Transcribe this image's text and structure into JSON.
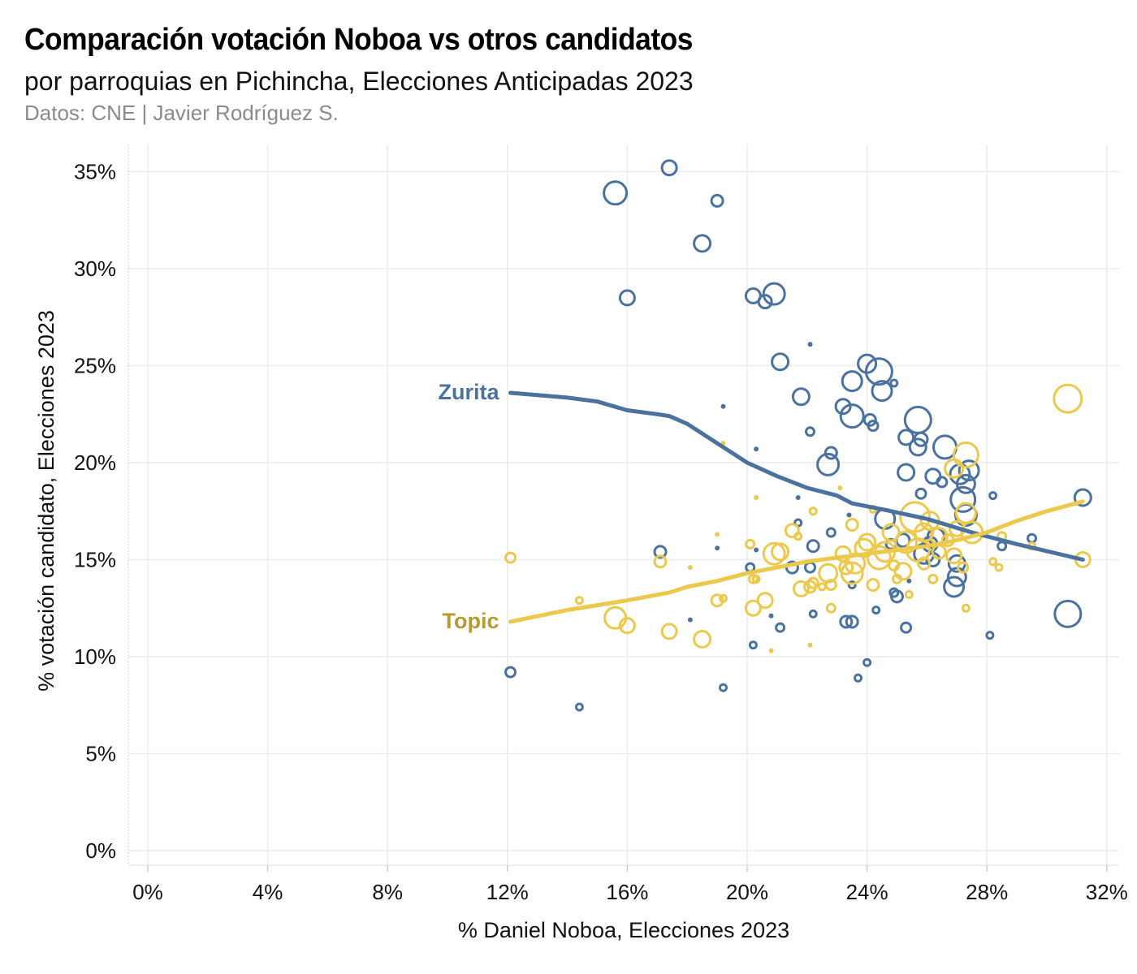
{
  "header": {
    "title": "Comparación votación Noboa vs otros candidatos",
    "subtitle": "por parroquias en Pichincha, Elecciones Anticipadas 2023",
    "source": "Datos: CNE | Javier Rodríguez S."
  },
  "chart_data": {
    "type": "scatter",
    "xlabel": "% Daniel Noboa, Elecciones 2023",
    "ylabel": "% votación candidato, Elecciones 2023",
    "xlim": [
      -0.6,
      32.5
    ],
    "ylim": [
      -0.8,
      37
    ],
    "x_ticks": [
      {
        "value": 0,
        "label": "0%"
      },
      {
        "value": 4,
        "label": "4%"
      },
      {
        "value": 8,
        "label": "8%"
      },
      {
        "value": 12,
        "label": "12%"
      },
      {
        "value": 16,
        "label": "16%"
      },
      {
        "value": 20,
        "label": "20%"
      },
      {
        "value": 24,
        "label": "24%"
      },
      {
        "value": 28,
        "label": "28%"
      },
      {
        "value": 32,
        "label": "32%"
      }
    ],
    "y_ticks": [
      {
        "value": 0,
        "label": "0%"
      },
      {
        "value": 5,
        "label": "5%"
      },
      {
        "value": 10,
        "label": "10%"
      },
      {
        "value": 15,
        "label": "15%"
      },
      {
        "value": 20,
        "label": "20%"
      },
      {
        "value": 25,
        "label": "25%"
      },
      {
        "value": 30,
        "label": "30%"
      },
      {
        "value": 35,
        "label": "35%"
      }
    ],
    "series": [
      {
        "name": "Zurita",
        "color": "#4a72a1",
        "label_color": "#4a72a1",
        "trend": [
          [
            12.1,
            23.6
          ],
          [
            14.0,
            23.35
          ],
          [
            15.0,
            23.15
          ],
          [
            16.0,
            22.7
          ],
          [
            17.0,
            22.5
          ],
          [
            17.4,
            22.4
          ],
          [
            18.0,
            22.0
          ],
          [
            19.0,
            21.0
          ],
          [
            20.0,
            20.0
          ],
          [
            21.0,
            19.3
          ],
          [
            22.0,
            18.7
          ],
          [
            23.0,
            18.3
          ],
          [
            23.5,
            17.9
          ],
          [
            24.5,
            17.6
          ],
          [
            26.0,
            17.1
          ],
          [
            27.5,
            16.4
          ],
          [
            29.0,
            15.8
          ],
          [
            31.2,
            15.0
          ]
        ],
        "points": [
          {
            "x": 17.4,
            "y": 35.2,
            "size": 9
          },
          {
            "x": 15.6,
            "y": 33.9,
            "size": 14
          },
          {
            "x": 19.0,
            "y": 33.5,
            "size": 7
          },
          {
            "x": 18.5,
            "y": 31.3,
            "size": 10
          },
          {
            "x": 16.0,
            "y": 28.5,
            "size": 9
          },
          {
            "x": 20.9,
            "y": 28.7,
            "size": 13
          },
          {
            "x": 20.2,
            "y": 28.6,
            "size": 9
          },
          {
            "x": 20.6,
            "y": 28.3,
            "size": 8
          },
          {
            "x": 22.1,
            "y": 26.1,
            "size": 3
          },
          {
            "x": 21.1,
            "y": 25.2,
            "size": 10
          },
          {
            "x": 24.0,
            "y": 25.1,
            "size": 11
          },
          {
            "x": 24.4,
            "y": 24.7,
            "size": 16
          },
          {
            "x": 23.5,
            "y": 24.2,
            "size": 12
          },
          {
            "x": 24.9,
            "y": 24.1,
            "size": 4
          },
          {
            "x": 24.5,
            "y": 23.7,
            "size": 12
          },
          {
            "x": 21.8,
            "y": 23.4,
            "size": 10
          },
          {
            "x": 23.2,
            "y": 22.9,
            "size": 9
          },
          {
            "x": 19.2,
            "y": 22.9,
            "size": 3
          },
          {
            "x": 23.5,
            "y": 22.4,
            "size": 14
          },
          {
            "x": 24.1,
            "y": 22.2,
            "size": 7
          },
          {
            "x": 24.2,
            "y": 21.9,
            "size": 6
          },
          {
            "x": 25.7,
            "y": 22.2,
            "size": 16
          },
          {
            "x": 22.1,
            "y": 21.6,
            "size": 5
          },
          {
            "x": 25.3,
            "y": 21.3,
            "size": 9
          },
          {
            "x": 25.8,
            "y": 21.2,
            "size": 8
          },
          {
            "x": 25.7,
            "y": 20.8,
            "size": 10
          },
          {
            "x": 26.6,
            "y": 20.8,
            "size": 14
          },
          {
            "x": 20.3,
            "y": 20.7,
            "size": 3
          },
          {
            "x": 22.8,
            "y": 20.5,
            "size": 7
          },
          {
            "x": 22.7,
            "y": 19.9,
            "size": 13
          },
          {
            "x": 25.3,
            "y": 19.5,
            "size": 10
          },
          {
            "x": 26.2,
            "y": 19.3,
            "size": 9
          },
          {
            "x": 27.1,
            "y": 19.4,
            "size": 12
          },
          {
            "x": 27.4,
            "y": 19.6,
            "size": 12
          },
          {
            "x": 26.5,
            "y": 19.0,
            "size": 6
          },
          {
            "x": 27.3,
            "y": 18.9,
            "size": 11
          },
          {
            "x": 25.8,
            "y": 18.4,
            "size": 6
          },
          {
            "x": 21.7,
            "y": 18.2,
            "size": 3
          },
          {
            "x": 28.2,
            "y": 18.3,
            "size": 4
          },
          {
            "x": 27.2,
            "y": 18.1,
            "size": 15
          },
          {
            "x": 31.2,
            "y": 18.2,
            "size": 10
          },
          {
            "x": 23.4,
            "y": 17.3,
            "size": 3
          },
          {
            "x": 27.3,
            "y": 17.3,
            "size": 13
          },
          {
            "x": 24.6,
            "y": 17.1,
            "size": 12
          },
          {
            "x": 21.7,
            "y": 16.9,
            "size": 4
          },
          {
            "x": 22.8,
            "y": 16.4,
            "size": 5
          },
          {
            "x": 26.3,
            "y": 16.2,
            "size": 10
          },
          {
            "x": 25.2,
            "y": 16.0,
            "size": 8
          },
          {
            "x": 24.8,
            "y": 15.8,
            "size": 6
          },
          {
            "x": 26.1,
            "y": 15.8,
            "size": 9
          },
          {
            "x": 22.2,
            "y": 15.7,
            "size": 7
          },
          {
            "x": 28.5,
            "y": 15.7,
            "size": 5
          },
          {
            "x": 29.5,
            "y": 16.1,
            "size": 5
          },
          {
            "x": 19.0,
            "y": 15.6,
            "size": 3
          },
          {
            "x": 17.1,
            "y": 15.4,
            "size": 7
          },
          {
            "x": 20.3,
            "y": 15.5,
            "size": 3
          },
          {
            "x": 25.9,
            "y": 15.3,
            "size": 12
          },
          {
            "x": 26.2,
            "y": 15.0,
            "size": 8
          },
          {
            "x": 27.0,
            "y": 14.8,
            "size": 10
          },
          {
            "x": 21.5,
            "y": 14.6,
            "size": 7
          },
          {
            "x": 20.1,
            "y": 14.6,
            "size": 5
          },
          {
            "x": 22.1,
            "y": 14.6,
            "size": 6
          },
          {
            "x": 27.0,
            "y": 14.1,
            "size": 11
          },
          {
            "x": 25.4,
            "y": 13.9,
            "size": 3
          },
          {
            "x": 23.5,
            "y": 13.7,
            "size": 4
          },
          {
            "x": 26.9,
            "y": 13.6,
            "size": 12
          },
          {
            "x": 24.9,
            "y": 13.3,
            "size": 5
          },
          {
            "x": 25.0,
            "y": 13.1,
            "size": 7
          },
          {
            "x": 24.3,
            "y": 12.4,
            "size": 4
          },
          {
            "x": 22.2,
            "y": 12.2,
            "size": 4
          },
          {
            "x": 20.8,
            "y": 12.1,
            "size": 3
          },
          {
            "x": 30.7,
            "y": 12.2,
            "size": 16
          },
          {
            "x": 18.1,
            "y": 11.9,
            "size": 3
          },
          {
            "x": 23.3,
            "y": 11.8,
            "size": 7
          },
          {
            "x": 23.5,
            "y": 11.8,
            "size": 7
          },
          {
            "x": 21.1,
            "y": 11.5,
            "size": 5
          },
          {
            "x": 25.3,
            "y": 11.5,
            "size": 6
          },
          {
            "x": 28.1,
            "y": 11.1,
            "size": 4
          },
          {
            "x": 20.2,
            "y": 10.6,
            "size": 4
          },
          {
            "x": 24.0,
            "y": 9.7,
            "size": 4
          },
          {
            "x": 12.1,
            "y": 9.2,
            "size": 6
          },
          {
            "x": 23.7,
            "y": 8.9,
            "size": 4
          },
          {
            "x": 19.2,
            "y": 8.4,
            "size": 4
          },
          {
            "x": 14.4,
            "y": 7.4,
            "size": 4
          }
        ]
      },
      {
        "name": "Topic",
        "color": "#ecc94b",
        "label_color": "#b99a2e",
        "trend": [
          [
            12.1,
            11.8
          ],
          [
            14.0,
            12.4
          ],
          [
            16.0,
            12.9
          ],
          [
            17.4,
            13.3
          ],
          [
            18.0,
            13.6
          ],
          [
            19.0,
            13.9
          ],
          [
            20.0,
            14.3
          ],
          [
            21.0,
            14.6
          ],
          [
            22.0,
            14.9
          ],
          [
            23.0,
            15.1
          ],
          [
            24.0,
            15.3
          ],
          [
            25.0,
            15.5
          ],
          [
            26.0,
            15.7
          ],
          [
            27.0,
            16.0
          ],
          [
            28.0,
            16.4
          ],
          [
            29.0,
            17.0
          ],
          [
            30.0,
            17.5
          ],
          [
            31.2,
            18.0
          ]
        ],
        "points": [
          {
            "x": 12.1,
            "y": 15.1,
            "size": 6
          },
          {
            "x": 14.4,
            "y": 12.9,
            "size": 4
          },
          {
            "x": 15.6,
            "y": 12.0,
            "size": 13
          },
          {
            "x": 16.0,
            "y": 11.6,
            "size": 9
          },
          {
            "x": 17.1,
            "y": 14.9,
            "size": 7
          },
          {
            "x": 17.4,
            "y": 11.3,
            "size": 9
          },
          {
            "x": 18.1,
            "y": 14.6,
            "size": 3
          },
          {
            "x": 18.5,
            "y": 10.9,
            "size": 10
          },
          {
            "x": 19.0,
            "y": 12.9,
            "size": 7
          },
          {
            "x": 19.0,
            "y": 16.3,
            "size": 3
          },
          {
            "x": 19.2,
            "y": 13.0,
            "size": 4
          },
          {
            "x": 19.2,
            "y": 21.0,
            "size": 3
          },
          {
            "x": 20.1,
            "y": 15.8,
            "size": 5
          },
          {
            "x": 20.2,
            "y": 14.0,
            "size": 5
          },
          {
            "x": 20.3,
            "y": 14.0,
            "size": 4
          },
          {
            "x": 20.2,
            "y": 12.5,
            "size": 9
          },
          {
            "x": 20.3,
            "y": 18.2,
            "size": 3
          },
          {
            "x": 20.6,
            "y": 12.9,
            "size": 9
          },
          {
            "x": 20.8,
            "y": 10.3,
            "size": 3
          },
          {
            "x": 20.9,
            "y": 15.3,
            "size": 13
          },
          {
            "x": 21.1,
            "y": 15.4,
            "size": 10
          },
          {
            "x": 21.5,
            "y": 16.5,
            "size": 8
          },
          {
            "x": 21.7,
            "y": 16.2,
            "size": 4
          },
          {
            "x": 21.8,
            "y": 13.5,
            "size": 9
          },
          {
            "x": 22.1,
            "y": 10.6,
            "size": 3
          },
          {
            "x": 22.1,
            "y": 13.6,
            "size": 7
          },
          {
            "x": 22.2,
            "y": 17.5,
            "size": 4
          },
          {
            "x": 22.2,
            "y": 13.8,
            "size": 6
          },
          {
            "x": 22.5,
            "y": 13.6,
            "size": 4
          },
          {
            "x": 22.7,
            "y": 14.3,
            "size": 11
          },
          {
            "x": 22.8,
            "y": 13.7,
            "size": 6
          },
          {
            "x": 22.8,
            "y": 12.5,
            "size": 5
          },
          {
            "x": 23.1,
            "y": 18.7,
            "size": 3
          },
          {
            "x": 23.2,
            "y": 15.3,
            "size": 9
          },
          {
            "x": 23.3,
            "y": 14.6,
            "size": 8
          },
          {
            "x": 23.5,
            "y": 14.3,
            "size": 13
          },
          {
            "x": 23.5,
            "y": 16.8,
            "size": 7
          },
          {
            "x": 23.6,
            "y": 14.8,
            "size": 12
          },
          {
            "x": 23.9,
            "y": 15.6,
            "size": 11
          },
          {
            "x": 24.0,
            "y": 15.9,
            "size": 10
          },
          {
            "x": 24.2,
            "y": 13.7,
            "size": 7
          },
          {
            "x": 24.2,
            "y": 17.6,
            "size": 4
          },
          {
            "x": 24.4,
            "y": 15.1,
            "size": 14
          },
          {
            "x": 24.6,
            "y": 15.4,
            "size": 12
          },
          {
            "x": 24.8,
            "y": 16.4,
            "size": 10
          },
          {
            "x": 24.9,
            "y": 14.7,
            "size": 6
          },
          {
            "x": 25.0,
            "y": 14.0,
            "size": 5
          },
          {
            "x": 25.2,
            "y": 14.4,
            "size": 10
          },
          {
            "x": 25.3,
            "y": 15.9,
            "size": 13
          },
          {
            "x": 25.4,
            "y": 13.2,
            "size": 4
          },
          {
            "x": 25.6,
            "y": 17.2,
            "size": 18
          },
          {
            "x": 25.7,
            "y": 15.5,
            "size": 14
          },
          {
            "x": 25.9,
            "y": 16.4,
            "size": 11
          },
          {
            "x": 25.9,
            "y": 14.8,
            "size": 7
          },
          {
            "x": 26.1,
            "y": 17.0,
            "size": 11
          },
          {
            "x": 26.2,
            "y": 14.0,
            "size": 5
          },
          {
            "x": 26.4,
            "y": 15.4,
            "size": 8
          },
          {
            "x": 26.4,
            "y": 16.2,
            "size": 10
          },
          {
            "x": 26.7,
            "y": 16.0,
            "size": 7
          },
          {
            "x": 26.9,
            "y": 15.2,
            "size": 9
          },
          {
            "x": 26.9,
            "y": 19.7,
            "size": 11
          },
          {
            "x": 27.0,
            "y": 16.6,
            "size": 9
          },
          {
            "x": 27.2,
            "y": 14.6,
            "size": 6
          },
          {
            "x": 27.3,
            "y": 12.5,
            "size": 4
          },
          {
            "x": 27.3,
            "y": 20.4,
            "size": 15
          },
          {
            "x": 27.3,
            "y": 17.4,
            "size": 12
          },
          {
            "x": 27.5,
            "y": 16.4,
            "size": 13
          },
          {
            "x": 28.2,
            "y": 14.9,
            "size": 4
          },
          {
            "x": 28.4,
            "y": 14.6,
            "size": 4
          },
          {
            "x": 28.5,
            "y": 16.2,
            "size": 5
          },
          {
            "x": 29.5,
            "y": 15.7,
            "size": 4
          },
          {
            "x": 30.7,
            "y": 23.3,
            "size": 17
          },
          {
            "x": 31.2,
            "y": 15.0,
            "size": 9
          }
        ]
      }
    ]
  }
}
